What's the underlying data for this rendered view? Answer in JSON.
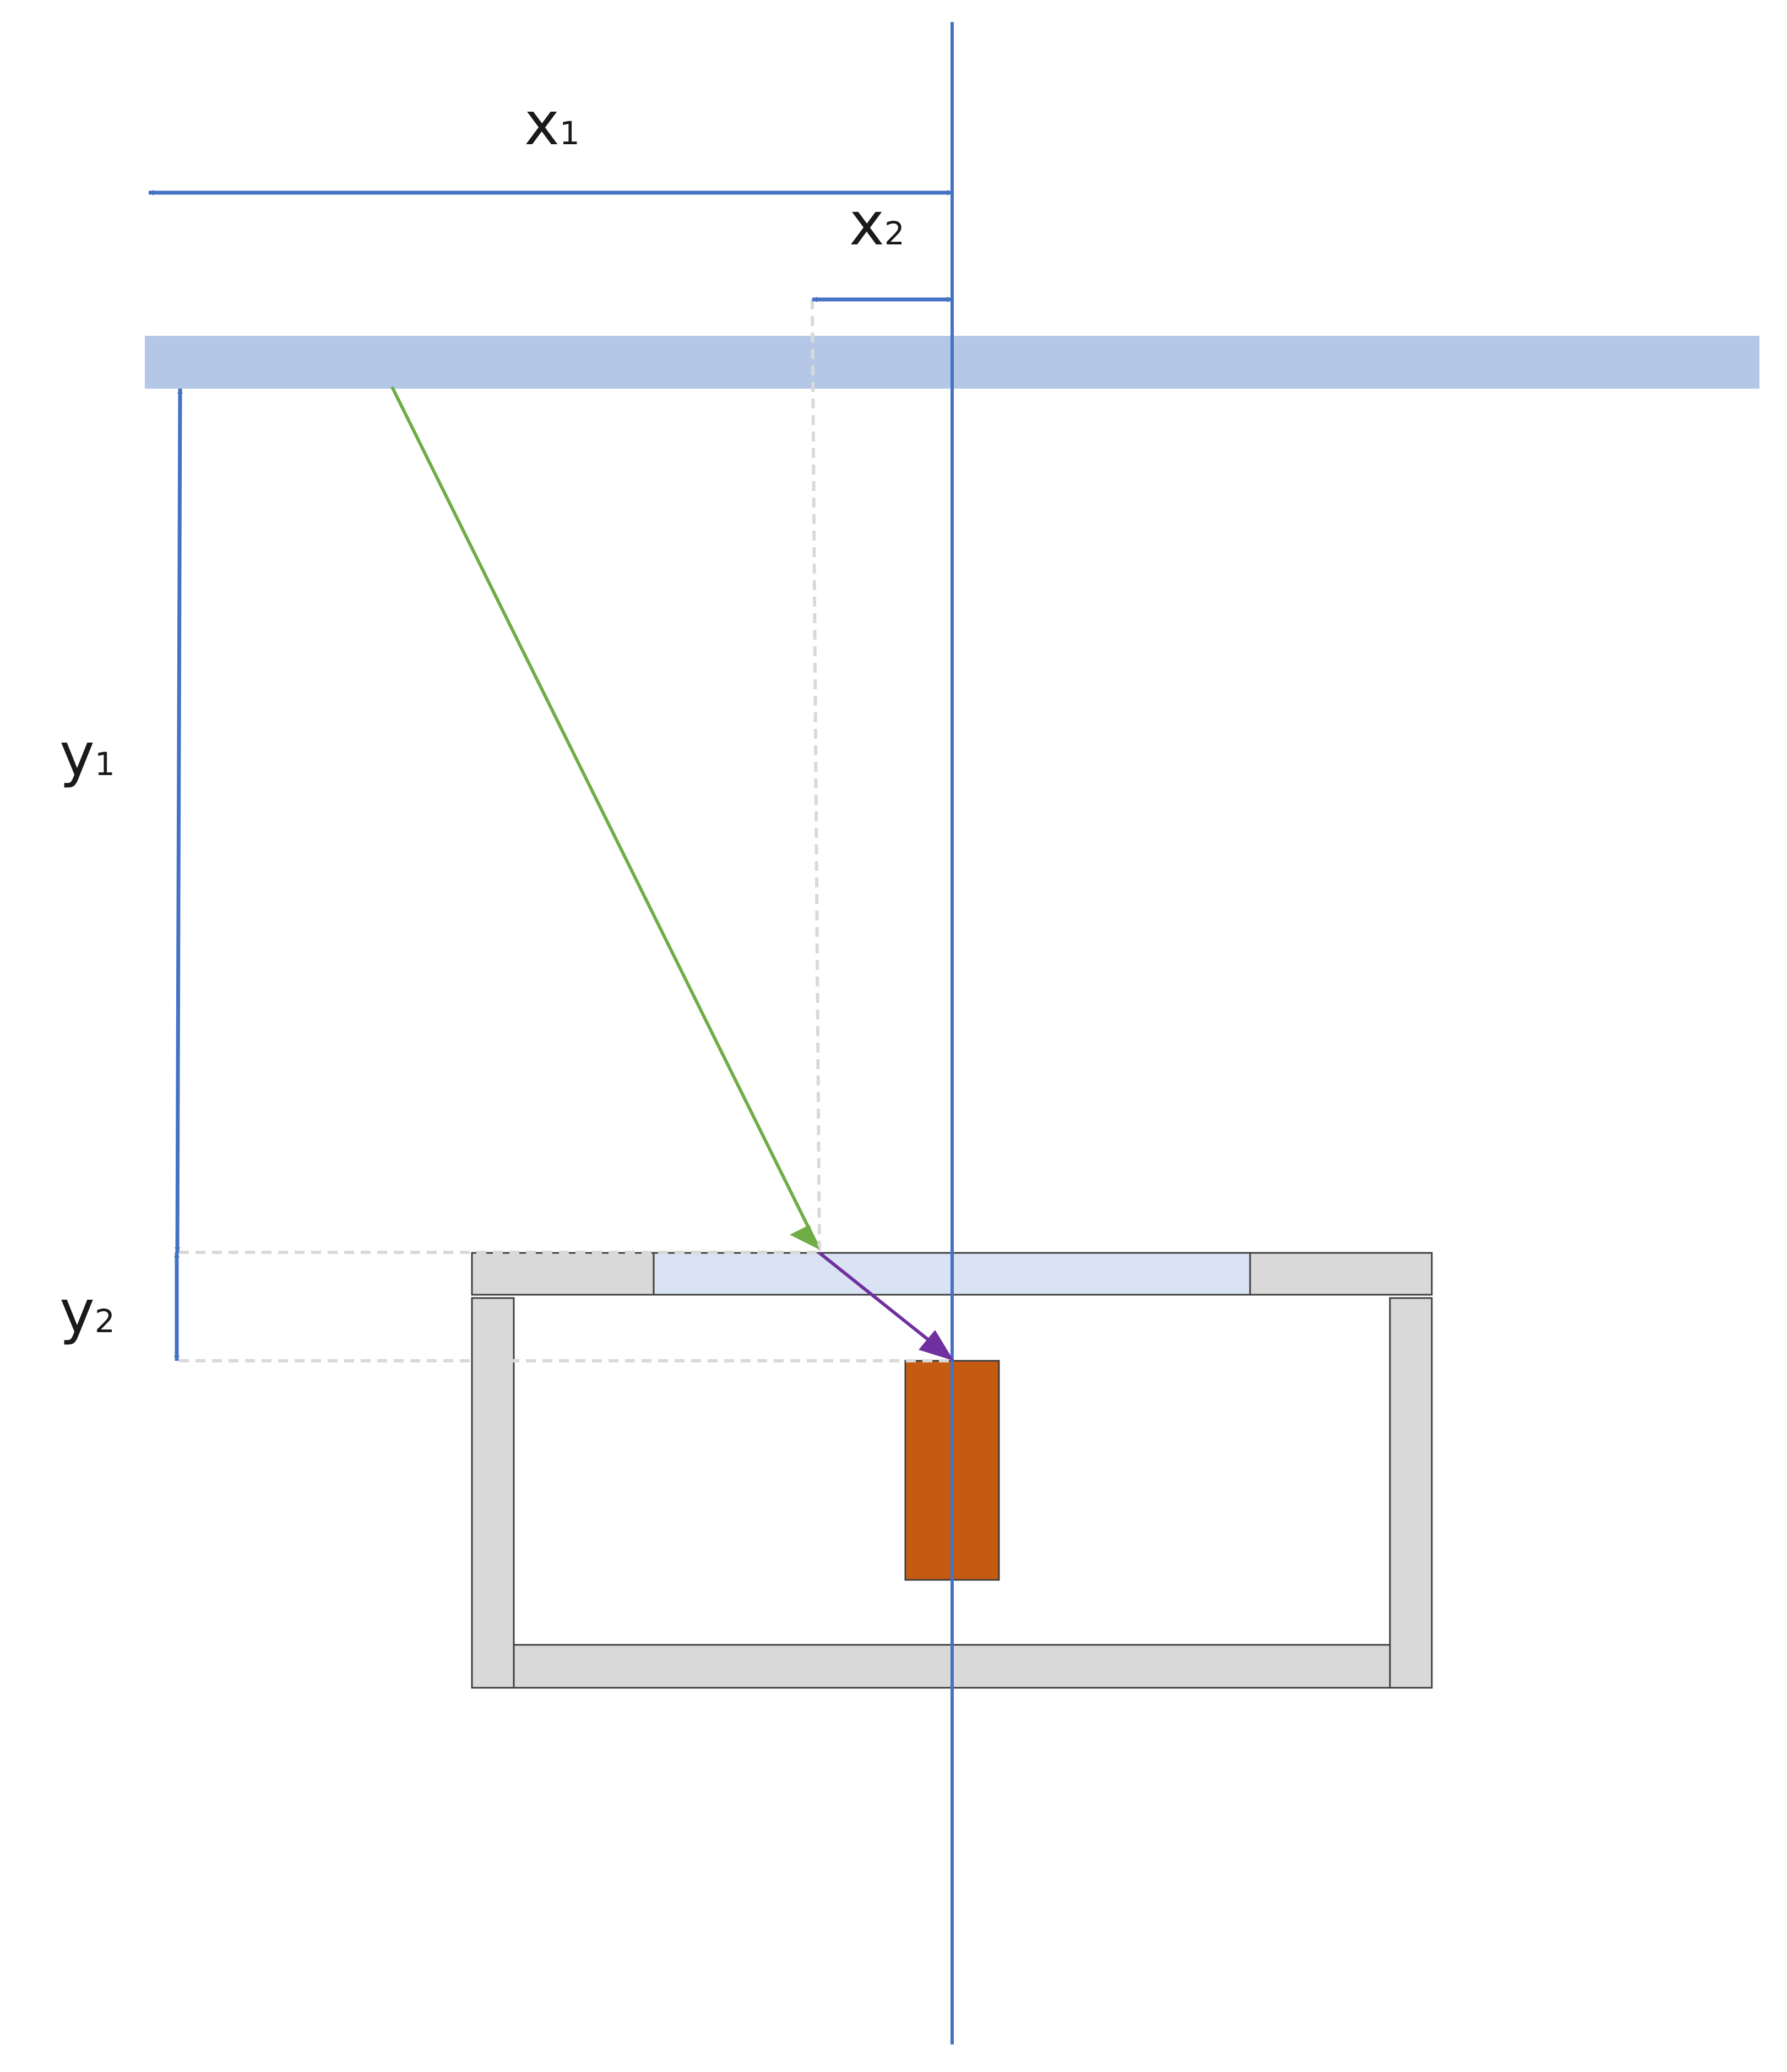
{
  "labels": {
    "x1": {
      "main": "x",
      "sub": "1"
    },
    "x2": {
      "main": "x",
      "sub": "2"
    },
    "y1": {
      "main": "y",
      "sub": "1"
    },
    "y2": {
      "main": "y",
      "sub": "2"
    }
  },
  "colors": {
    "dimension": "#4472C4",
    "ceiling": "#B4C7E7",
    "incident_ray": "#70AD47",
    "refracted_ray": "#7030A0",
    "window": "#DAE3F3",
    "housing": "#D9D9D9",
    "sensor": "#C55A11",
    "guide": "#D9D9D9"
  }
}
